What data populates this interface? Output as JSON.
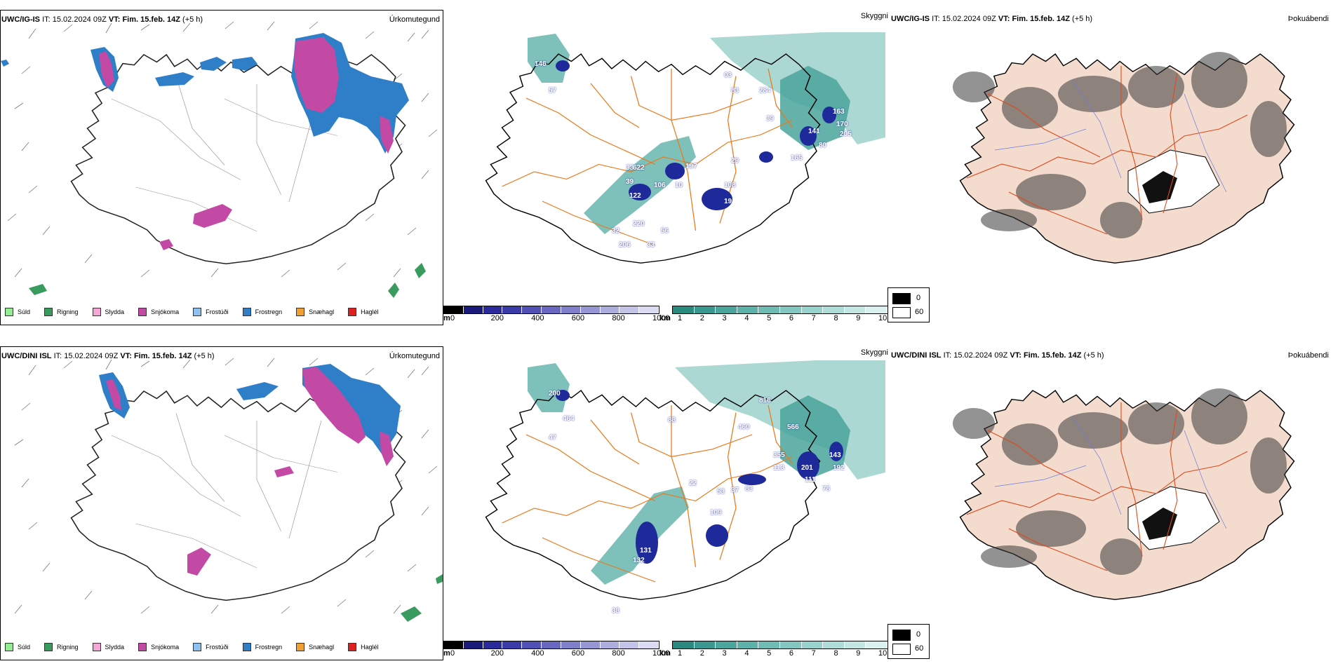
{
  "rows": [
    {
      "precip": {
        "model": "UWC/IG-IS",
        "it_label": "IT:",
        "it": "15.02.2024 09Z",
        "vt_label": "VT:",
        "vt": "Fim. 15.feb. 14Z",
        "lead": "(+5 h)",
        "title": "Úrkomutegund"
      },
      "cloud": {
        "title": "Skyggni",
        "labels": [
          "146",
          "57",
          "03",
          "83",
          "284",
          "39",
          "163",
          "170",
          "141",
          "205",
          "80",
          "165",
          "33",
          "622",
          "197",
          "29",
          "39",
          "122",
          "106",
          "10",
          "108",
          "19",
          "220",
          "32",
          "56",
          "206",
          "33"
        ]
      },
      "fog": {
        "model": "UWC/IG-IS",
        "it_label": "IT:",
        "it": "15.02.2024 09Z",
        "vt_label": "VT:",
        "vt": "Fim. 15.feb. 14Z",
        "lead": "(+5 h)",
        "title": "Þokuábendi"
      }
    },
    {
      "precip": {
        "model": "UWC/DINI ISL",
        "it_label": "IT:",
        "it": "15.02.2024 09Z",
        "vt_label": "VT:",
        "vt": "Fim. 15.feb. 14Z",
        "lead": "(+5 h)",
        "title": "Úrkomutegund"
      },
      "cloud": {
        "title": "Skyggni",
        "labels": [
          "200",
          "464",
          "47",
          "88",
          "816",
          "460",
          "566",
          "355",
          "113",
          "201",
          "143",
          "192",
          "111",
          "78",
          "83",
          "37",
          "22",
          "53",
          "109",
          "131",
          "132",
          "38"
        ]
      },
      "fog": {
        "model": "UWC/DINI ISL",
        "it_label": "IT:",
        "it": "15.02.2024 09Z",
        "vt_label": "VT:",
        "vt": "Fim. 15.feb. 14Z",
        "lead": "(+5 h)",
        "title": "Þokuábendi"
      }
    }
  ],
  "precip_legend": [
    {
      "label": "Súld",
      "color": "#90ee90"
    },
    {
      "label": "Rigning",
      "color": "#3a9b5e"
    },
    {
      "label": "Slydda",
      "color": "#f2a7d6"
    },
    {
      "label": "Snjókoma",
      "color": "#c24aa5"
    },
    {
      "label": "Frostúði",
      "color": "#8ec1f0"
    },
    {
      "label": "Frostregn",
      "color": "#2f7fc8"
    },
    {
      "label": "Snæhagl",
      "color": "#f0a030"
    },
    {
      "label": "Haglél",
      "color": "#e02020"
    }
  ],
  "ceiling_bar": {
    "unit": "m",
    "ticks": [
      "0",
      "200",
      "400",
      "600",
      "800",
      "1000"
    ],
    "colors": [
      "#000000",
      "#1a1a7a",
      "#2a2a9a",
      "#3a3aa8",
      "#5050b5",
      "#6868c0",
      "#7f7fca",
      "#9696d4",
      "#adadde",
      "#c4c4e8",
      "#dadaf2"
    ]
  },
  "vis_bar": {
    "unit": "km",
    "ticks": [
      "1",
      "2",
      "3",
      "4",
      "5",
      "6",
      "7",
      "8",
      "9",
      "10"
    ],
    "colors": [
      "#2a8a80",
      "#3a9890",
      "#4aa59c",
      "#5cb1a9",
      "#6fbcb5",
      "#83c7c1",
      "#98d2cd",
      "#aedcd8",
      "#c4e7e4",
      "#daf1ef"
    ]
  },
  "fog_legend": {
    "low": "0",
    "high": "60"
  }
}
